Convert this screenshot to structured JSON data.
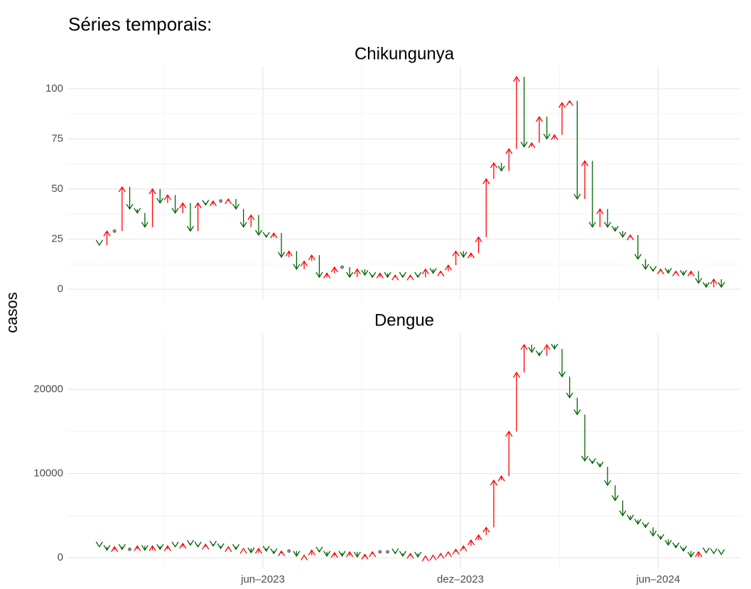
{
  "title": "Séries temporais:",
  "y_label": "casos",
  "chart_data": [
    {
      "type": "arrow",
      "title": "Chikungunya",
      "up_color": "#ff0000",
      "down_color": "#006400",
      "flat_color": "#808080",
      "values": [
        22,
        29,
        29,
        51,
        40,
        38,
        31,
        50,
        43,
        47,
        38,
        43,
        29,
        43,
        42,
        44,
        44,
        45,
        40,
        31,
        37,
        27,
        26,
        28,
        16,
        19,
        10,
        14,
        17,
        6,
        8,
        11,
        11,
        6,
        10,
        7,
        6,
        8,
        6,
        7,
        6,
        7,
        6,
        10,
        8,
        9,
        12,
        19,
        16,
        18,
        26,
        55,
        63,
        59,
        70,
        106,
        71,
        73,
        86,
        75,
        77,
        93,
        94,
        45,
        64,
        31,
        40,
        31,
        29,
        26,
        27,
        15,
        10,
        9,
        10,
        8,
        9,
        7,
        9,
        3,
        1,
        5,
        1
      ],
      "ylim": [
        -5.3,
        111.3
      ],
      "yticks": [
        0,
        25,
        50,
        75,
        100
      ],
      "grid": true
    },
    {
      "type": "arrow",
      "title": "Dengue",
      "up_color": "#ff0000",
      "down_color": "#006400",
      "flat_color": "#808080",
      "values": [
        1300,
        900,
        1300,
        1000,
        1000,
        1400,
        900,
        1400,
        1000,
        1400,
        1300,
        1700,
        1500,
        1300,
        1600,
        1400,
        1100,
        1300,
        1000,
        1100,
        600,
        1100,
        800,
        500,
        800,
        800,
        200,
        300,
        900,
        700,
        200,
        600,
        200,
        700,
        100,
        400,
        700,
        700,
        700,
        500,
        200,
        500,
        100,
        200,
        300,
        500,
        700,
        1000,
        1400,
        2100,
        2700,
        3600,
        9200,
        9700,
        15000,
        22000,
        25300,
        24400,
        24000,
        25300,
        24800,
        21500,
        19000,
        17000,
        11500,
        11200,
        10800,
        8600,
        6800,
        5000,
        4500,
        4000,
        3600,
        2600,
        2200,
        1500,
        1200,
        800,
        100,
        700,
        600,
        500,
        400
      ],
      "ylim": [
        -1266,
        26580
      ],
      "yticks": [
        0,
        10000,
        20000
      ],
      "grid": true,
      "xlim": [
        -4.2,
        84.6
      ],
      "xticks": [
        {
          "value": 21.56,
          "label": "jun–2023"
        },
        {
          "value": 47.6,
          "label": "dez–2023"
        },
        {
          "value": 73.67,
          "label": "jun–2024"
        }
      ]
    }
  ]
}
